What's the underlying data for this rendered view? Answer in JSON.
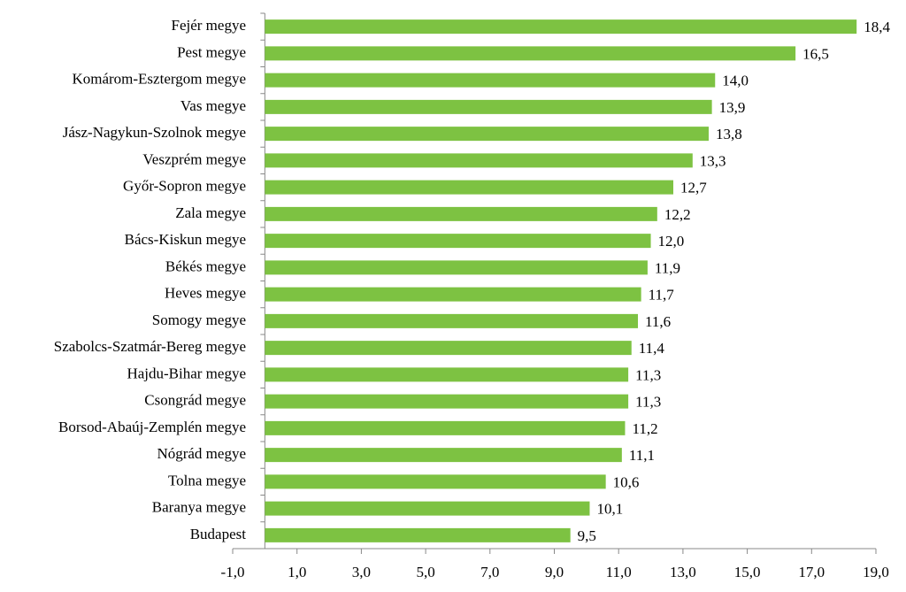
{
  "chart_data": {
    "type": "bar",
    "orientation": "horizontal",
    "categories": [
      "Fejér megye",
      "Pest megye",
      "Komárom-Esztergom megye",
      "Vas megye",
      "Jász-Nagykun-Szolnok megye",
      "Veszprém megye",
      "Győr-Sopron megye",
      "Zala megye",
      "Bács-Kiskun megye",
      "Békés megye",
      "Heves megye",
      "Somogy megye",
      "Szabolcs-Szatmár-Bereg megye",
      "Hajdu-Bihar megye",
      "Csongrád megye",
      "Borsod-Abaúj-Zemplén megye",
      "Nógrád megye",
      "Tolna megye",
      "Baranya megye",
      "Budapest"
    ],
    "values": [
      18.4,
      16.5,
      14.0,
      13.9,
      13.8,
      13.3,
      12.7,
      12.2,
      12.0,
      11.9,
      11.7,
      11.6,
      11.4,
      11.3,
      11.3,
      11.2,
      11.1,
      10.6,
      10.1,
      9.5
    ],
    "value_labels": [
      "18,4",
      "16,5",
      "14,0",
      "13,9",
      "13,8",
      "13,3",
      "12,7",
      "12,2",
      "12,0",
      "11,9",
      "11,7",
      "11,6",
      "11,4",
      "11,3",
      "11,3",
      "11,2",
      "11,1",
      "10,6",
      "10,1",
      "9,5"
    ],
    "color": "#7dc242",
    "xlim": [
      -1,
      19
    ],
    "xticks": [
      {
        "value": -1,
        "label": "-1,0"
      },
      {
        "value": 1,
        "label": "1,0"
      },
      {
        "value": 3,
        "label": "3,0"
      },
      {
        "value": 5,
        "label": "5,0"
      },
      {
        "value": 7,
        "label": "7,0"
      },
      {
        "value": 9,
        "label": "9,0"
      },
      {
        "value": 11,
        "label": "11,0"
      },
      {
        "value": 13,
        "label": "13,0"
      },
      {
        "value": 15,
        "label": "15,0"
      },
      {
        "value": 17,
        "label": "17,0"
      },
      {
        "value": 19,
        "label": "19,0"
      }
    ],
    "grid": false
  }
}
